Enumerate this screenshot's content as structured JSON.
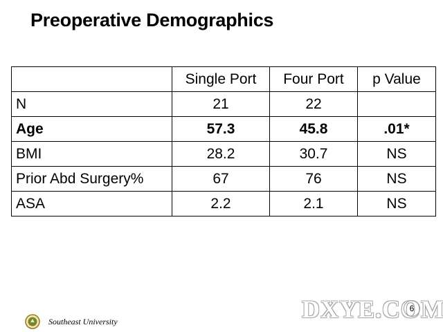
{
  "slide": {
    "title": "Preoperative Demographics",
    "footer": "Southeast University",
    "page_number": "6",
    "watermark": "DXYE.COM"
  },
  "table": {
    "headers": [
      "",
      "Single Port",
      "Four Port",
      "p Value"
    ],
    "rows": [
      {
        "label": "N",
        "single": "21",
        "four": "22",
        "p": ""
      },
      {
        "label": "Age",
        "single": "57.3",
        "four": "45.8",
        "p": ".01*"
      },
      {
        "label": "BMI",
        "single": "28.2",
        "four": "30.7",
        "p": "NS"
      },
      {
        "label": "Prior Abd Surgery%",
        "single": "67",
        "four": "76",
        "p": "NS"
      },
      {
        "label": "ASA",
        "single": "2.2",
        "four": "2.1",
        "p": "NS"
      }
    ]
  }
}
